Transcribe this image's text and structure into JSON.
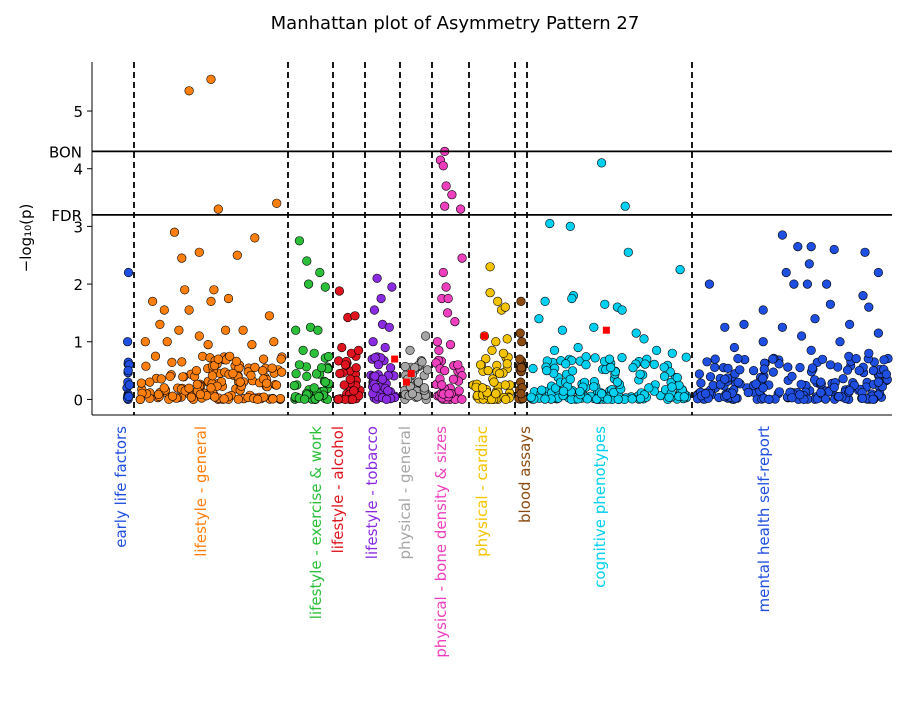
{
  "chart_data": {
    "type": "scatter",
    "title": "Manhattan plot of Asymmetry Pattern 27",
    "ylabel": "−log₁₀(p)",
    "ylim": [
      -0.27,
      5.85
    ],
    "yticks": [
      0,
      1,
      2,
      3,
      4,
      5
    ],
    "thresholds": [
      {
        "label": "BON",
        "value": 4.3
      },
      {
        "label": "FDR",
        "value": 3.2
      }
    ],
    "categories": [
      {
        "name": "early life factors",
        "color": "#1f4fe0",
        "points": [
          [
            0.5,
            2.2
          ],
          [
            0.2,
            1.0
          ],
          [
            0.7,
            0.6
          ],
          [
            0.3,
            0.3
          ],
          [
            0.6,
            0.05
          ],
          [
            0.4,
            0.5
          ],
          [
            0.8,
            0.25
          ]
        ]
      },
      {
        "name": "lifestyle - general",
        "color": "#ff7f0e",
        "points": [
          [
            0.35,
            5.35
          ],
          [
            0.5,
            5.55
          ],
          [
            0.55,
            3.3
          ],
          [
            0.25,
            2.9
          ],
          [
            0.3,
            2.45
          ],
          [
            0.42,
            2.55
          ],
          [
            0.68,
            2.5
          ],
          [
            0.8,
            2.8
          ],
          [
            0.95,
            3.4
          ],
          [
            0.32,
            1.9
          ],
          [
            0.52,
            1.9
          ],
          [
            0.1,
            1.7
          ],
          [
            0.18,
            1.55
          ],
          [
            0.35,
            1.55
          ],
          [
            0.5,
            1.7
          ],
          [
            0.62,
            1.75
          ],
          [
            0.15,
            1.3
          ],
          [
            0.28,
            1.2
          ],
          [
            0.42,
            1.1
          ],
          [
            0.6,
            1.2
          ],
          [
            0.72,
            1.2
          ],
          [
            0.9,
            1.45
          ],
          [
            0.05,
            1.0
          ],
          [
            0.2,
            1.0
          ],
          [
            0.48,
            0.95
          ],
          [
            0.78,
            0.95
          ],
          [
            0.93,
            1.0
          ],
          [
            0.86,
            0.7
          ],
          [
            0.12,
            0.75
          ],
          [
            0.3,
            0.65
          ],
          [
            0.55,
            0.7
          ],
          [
            0.65,
            0.45
          ],
          [
            0.4,
            0.5
          ],
          [
            0.22,
            0.4
          ],
          [
            0.7,
            0.3
          ],
          [
            0.08,
            0.3
          ],
          [
            0.98,
            0.7
          ],
          [
            0.5,
            0.2
          ]
        ]
      },
      {
        "name": "lifestyle - exercise & work",
        "color": "#2bbf3a",
        "points": [
          [
            0.2,
            2.75
          ],
          [
            0.4,
            2.4
          ],
          [
            0.45,
            2.0
          ],
          [
            0.75,
            2.2
          ],
          [
            0.9,
            1.95
          ],
          [
            0.1,
            1.2
          ],
          [
            0.5,
            1.25
          ],
          [
            0.7,
            1.2
          ],
          [
            0.3,
            0.85
          ],
          [
            0.6,
            0.8
          ],
          [
            0.2,
            0.6
          ],
          [
            0.8,
            0.55
          ],
          [
            0.4,
            0.4
          ],
          [
            0.9,
            0.3
          ],
          [
            0.6,
            0.2
          ]
        ]
      },
      {
        "name": "lifestyle - alcohol",
        "color": "#e0141e",
        "points": [
          [
            0.1,
            1.88
          ],
          [
            0.45,
            1.42
          ],
          [
            0.75,
            1.45
          ],
          [
            0.2,
            0.9
          ],
          [
            0.6,
            0.8
          ],
          [
            0.9,
            0.85
          ],
          [
            0.35,
            0.6
          ],
          [
            0.8,
            0.55
          ],
          [
            0.55,
            0.35
          ],
          [
            0.3,
            0.25
          ],
          [
            0.7,
            0.15
          ]
        ]
      },
      {
        "name": "lifestyle - tobacco",
        "color": "#8a2be2",
        "points": [
          [
            0.3,
            2.1
          ],
          [
            0.85,
            1.95
          ],
          [
            0.45,
            1.75
          ],
          [
            0.2,
            1.55
          ],
          [
            0.5,
            1.3
          ],
          [
            0.75,
            1.25
          ],
          [
            0.15,
            1.0
          ],
          [
            0.6,
            0.9
          ],
          [
            0.35,
            0.6
          ],
          [
            0.8,
            0.55
          ],
          [
            0.5,
            0.35
          ],
          [
            0.25,
            0.2
          ],
          [
            0.7,
            0.15
          ]
        ]
      },
      {
        "name": "physical - general",
        "color": "#a6a6a6",
        "points": [
          [
            0.25,
            0.85
          ],
          [
            0.75,
            0.65
          ],
          [
            0.45,
            0.55
          ],
          [
            0.15,
            0.35
          ],
          [
            0.6,
            0.3
          ],
          [
            0.85,
            0.2
          ],
          [
            0.35,
            0.1
          ],
          [
            0.9,
            1.1
          ]
        ]
      },
      {
        "name": "physical - bone density & sizes",
        "color": "#ee3fbe",
        "points": [
          [
            0.3,
            4.3
          ],
          [
            0.15,
            4.15
          ],
          [
            0.25,
            4.05
          ],
          [
            0.35,
            3.7
          ],
          [
            0.55,
            3.55
          ],
          [
            0.3,
            3.35
          ],
          [
            0.85,
            3.3
          ],
          [
            0.9,
            2.45
          ],
          [
            0.25,
            2.2
          ],
          [
            0.35,
            1.95
          ],
          [
            0.2,
            1.75
          ],
          [
            0.42,
            1.75
          ],
          [
            0.4,
            1.5
          ],
          [
            0.65,
            1.35
          ],
          [
            0.05,
            1.0
          ],
          [
            0.1,
            0.85
          ],
          [
            0.5,
            0.95
          ],
          [
            0.75,
            0.6
          ],
          [
            0.3,
            0.5
          ],
          [
            0.6,
            0.35
          ],
          [
            0.2,
            0.25
          ],
          [
            0.8,
            0.15
          ],
          [
            0.45,
            0.1
          ]
        ]
      },
      {
        "name": "physical - cardiac",
        "color": "#f5c400",
        "points": [
          [
            0.45,
            2.3
          ],
          [
            0.45,
            1.85
          ],
          [
            0.65,
            1.7
          ],
          [
            0.75,
            1.55
          ],
          [
            0.85,
            1.6
          ],
          [
            0.3,
            1.1
          ],
          [
            0.6,
            1.0
          ],
          [
            0.9,
            1.05
          ],
          [
            0.5,
            0.85
          ],
          [
            0.8,
            0.8
          ],
          [
            0.2,
            0.6
          ],
          [
            0.4,
            0.5
          ],
          [
            0.7,
            0.45
          ],
          [
            0.55,
            0.3
          ],
          [
            0.25,
            0.2
          ],
          [
            0.85,
            0.25
          ],
          [
            0.6,
            0.1
          ]
        ]
      },
      {
        "name": "blood assays",
        "color": "#8b4a0f",
        "points": [
          [
            0.5,
            1.7
          ],
          [
            0.3,
            1.15
          ],
          [
            0.7,
            1.0
          ],
          [
            0.2,
            0.7
          ],
          [
            0.6,
            0.55
          ],
          [
            0.4,
            0.3
          ],
          [
            0.8,
            0.2
          ],
          [
            0.5,
            0.1
          ]
        ]
      },
      {
        "name": "cognitive phenotypes",
        "color": "#00d0f0",
        "points": [
          [
            0.45,
            4.1
          ],
          [
            0.6,
            3.35
          ],
          [
            0.12,
            3.05
          ],
          [
            0.25,
            3.0
          ],
          [
            0.27,
            1.8
          ],
          [
            0.62,
            2.55
          ],
          [
            0.95,
            2.25
          ],
          [
            0.26,
            1.75
          ],
          [
            0.2,
            1.2
          ],
          [
            0.09,
            1.7
          ],
          [
            0.47,
            1.65
          ],
          [
            0.55,
            1.6
          ],
          [
            0.58,
            1.55
          ],
          [
            0.4,
            1.25
          ],
          [
            0.67,
            1.15
          ],
          [
            0.05,
            1.4
          ],
          [
            0.72,
            1.05
          ],
          [
            0.8,
            0.85
          ],
          [
            0.3,
            0.9
          ],
          [
            0.15,
            0.85
          ],
          [
            0.9,
            0.8
          ],
          [
            0.5,
            0.7
          ],
          [
            0.35,
            0.6
          ],
          [
            0.65,
            0.55
          ],
          [
            0.1,
            0.5
          ],
          [
            0.85,
            0.4
          ],
          [
            0.25,
            0.35
          ],
          [
            0.55,
            0.3
          ],
          [
            0.75,
            0.2
          ],
          [
            0.45,
            0.1
          ]
        ]
      },
      {
        "name": "mental health self-report",
        "color": "#1f4fe0",
        "points": [
          [
            0.45,
            2.85
          ],
          [
            0.53,
            2.65
          ],
          [
            0.6,
            2.65
          ],
          [
            0.72,
            2.6
          ],
          [
            0.88,
            2.55
          ],
          [
            0.59,
            2.35
          ],
          [
            0.47,
            2.2
          ],
          [
            0.95,
            2.2
          ],
          [
            0.51,
            2.0
          ],
          [
            0.58,
            2.0
          ],
          [
            0.68,
            2.0
          ],
          [
            0.87,
            1.8
          ],
          [
            0.7,
            1.65
          ],
          [
            0.9,
            1.6
          ],
          [
            0.07,
            2.0
          ],
          [
            0.35,
            1.55
          ],
          [
            0.62,
            1.4
          ],
          [
            0.25,
            1.3
          ],
          [
            0.45,
            1.25
          ],
          [
            0.8,
            1.3
          ],
          [
            0.15,
            1.25
          ],
          [
            0.95,
            1.15
          ],
          [
            0.55,
            1.1
          ],
          [
            0.35,
            1.0
          ],
          [
            0.75,
            1.0
          ],
          [
            0.2,
            0.9
          ],
          [
            0.6,
            0.85
          ],
          [
            0.9,
            0.8
          ],
          [
            0.1,
            0.7
          ],
          [
            0.4,
            0.7
          ],
          [
            0.7,
            0.6
          ],
          [
            0.3,
            0.5
          ],
          [
            0.85,
            0.5
          ],
          [
            0.5,
            0.4
          ],
          [
            0.15,
            0.35
          ],
          [
            0.65,
            0.3
          ],
          [
            0.95,
            0.3
          ],
          [
            0.35,
            0.2
          ],
          [
            0.8,
            0.15
          ],
          [
            0.05,
            0.1
          ]
        ]
      }
    ],
    "highlight": {
      "color": "#ff0000",
      "points": [
        [
          "lifestyle - tobacco",
          0.95,
          0.7
        ],
        [
          "physical - general",
          0.1,
          0.3
        ],
        [
          "physical - general",
          0.3,
          0.45
        ],
        [
          "physical - cardiac",
          0.3,
          1.1
        ],
        [
          "cognitive phenotypes",
          0.48,
          1.2
        ]
      ]
    }
  }
}
